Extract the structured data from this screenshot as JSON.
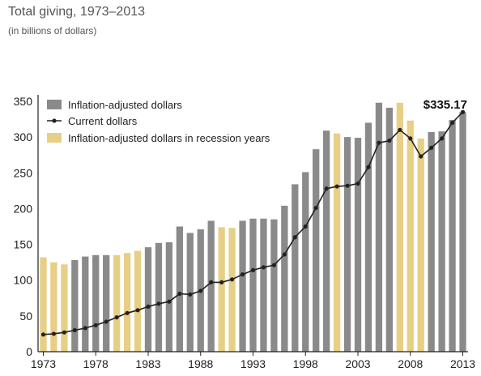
{
  "header": {
    "title": "Total giving, 1973–2013",
    "subtitle": "(in billions of dollars)"
  },
  "chart_data": {
    "type": "bar",
    "ylim": [
      0,
      350
    ],
    "y_ticks": [
      "0",
      "50",
      "100",
      "150",
      "200",
      "250",
      "300",
      "350"
    ],
    "x_tick_labels": [
      "1973",
      "1978",
      "1983",
      "1988",
      "1993",
      "1998",
      "2003",
      "2008",
      "2013"
    ],
    "x": [
      1973,
      1974,
      1975,
      1976,
      1977,
      1978,
      1979,
      1980,
      1981,
      1982,
      1983,
      1984,
      1985,
      1986,
      1987,
      1988,
      1989,
      1990,
      1991,
      1992,
      1993,
      1994,
      1995,
      1996,
      1997,
      1998,
      1999,
      2000,
      2001,
      2002,
      2003,
      2004,
      2005,
      2006,
      2007,
      2008,
      2009,
      2010,
      2011,
      2012,
      2013
    ],
    "recession": [
      1,
      1,
      1,
      0,
      0,
      0,
      0,
      1,
      1,
      1,
      0,
      0,
      0,
      0,
      0,
      0,
      0,
      1,
      1,
      0,
      0,
      0,
      0,
      0,
      0,
      0,
      0,
      0,
      1,
      0,
      0,
      0,
      0,
      0,
      1,
      1,
      1,
      0,
      0,
      0,
      0
    ],
    "series": [
      {
        "name": "Inflation-adjusted dollars",
        "color": "#8a8a8a",
        "recession_color": "#e8cf86",
        "values": [
          132,
          125,
          122,
          128,
          133,
          135,
          135,
          135,
          138,
          141,
          146,
          152,
          153,
          175,
          166,
          171,
          183,
          174,
          173,
          183,
          186,
          186,
          185,
          204,
          234,
          251,
          283,
          309,
          305,
          300,
          299,
          320,
          348,
          341,
          348,
          323,
          298,
          307,
          308,
          324,
          335
        ]
      },
      {
        "name": "Current dollars",
        "color": "#222222",
        "values": [
          24,
          25,
          27,
          30,
          33,
          37,
          42,
          48,
          54,
          58,
          63,
          67,
          70,
          81,
          80,
          85,
          97,
          97,
          101,
          108,
          114,
          118,
          121,
          136,
          160,
          175,
          201,
          228,
          231,
          232,
          235,
          258,
          292,
          295,
          310,
          298,
          273,
          285,
          298,
          320,
          335
        ]
      }
    ],
    "legend": [
      {
        "label": "Inflation-adjusted dollars",
        "kind": "bar",
        "color": "#8a8a8a"
      },
      {
        "label": "Current dollars",
        "kind": "line",
        "color": "#222222"
      },
      {
        "label": "Inflation-adjusted dollars in recession years",
        "kind": "bar",
        "color": "#e8cf86"
      }
    ],
    "annotation": "$335.17"
  }
}
